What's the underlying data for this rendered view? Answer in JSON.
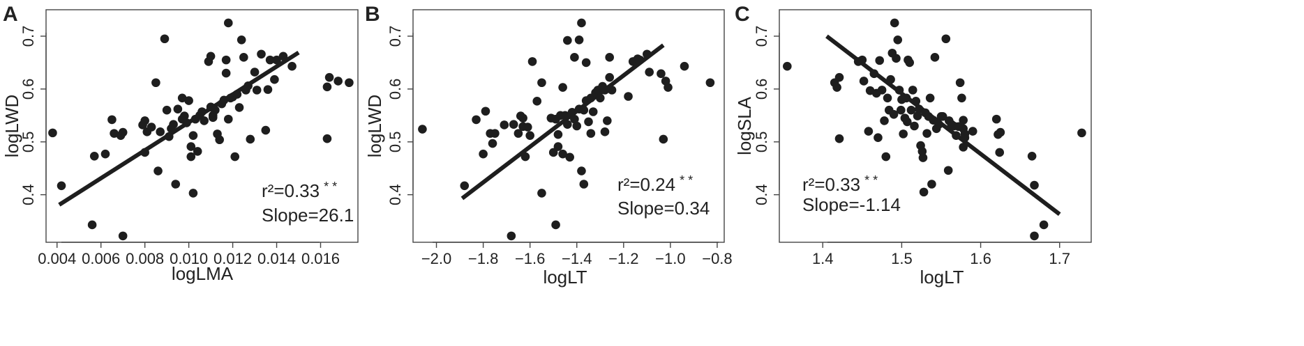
{
  "colors": {
    "point": "#1e1e1e",
    "fit_line": "#1e1e1e",
    "frame": "#444444",
    "text": "#222222"
  },
  "chart_data": [
    {
      "type": "scatter",
      "panel": "A",
      "xlabel": "logLMA",
      "ylabel": "logLWD",
      "xlim": [
        0.0035,
        0.0177
      ],
      "ylim": [
        0.31,
        0.75
      ],
      "x_ticks": [
        0.004,
        0.006,
        0.008,
        0.01,
        0.012,
        0.014,
        0.016
      ],
      "x_tick_labels": [
        "0.004",
        "0.006",
        "0.008",
        "0.010",
        "0.012",
        "0.014",
        "0.016"
      ],
      "y_ticks": [
        0.4,
        0.5,
        0.6,
        0.7
      ],
      "y_tick_labels": [
        "0.4",
        "0.5",
        "0.6",
        "0.7"
      ],
      "r2_text": "r²=0.33",
      "sig_text": "* *",
      "slope_text": "Slope=26.1",
      "fit_line": {
        "x": [
          0.0041,
          0.015
        ],
        "y": [
          0.381,
          0.669
        ]
      },
      "points": [
        [
          0.0038,
          0.517
        ],
        [
          0.0042,
          0.417
        ],
        [
          0.0056,
          0.343
        ],
        [
          0.0057,
          0.473
        ],
        [
          0.0062,
          0.477
        ],
        [
          0.0065,
          0.542
        ],
        [
          0.0066,
          0.516
        ],
        [
          0.0069,
          0.512
        ],
        [
          0.007,
          0.322
        ],
        [
          0.007,
          0.518
        ],
        [
          0.0079,
          0.532
        ],
        [
          0.008,
          0.48
        ],
        [
          0.008,
          0.54
        ],
        [
          0.0081,
          0.519
        ],
        [
          0.0083,
          0.528
        ],
        [
          0.0085,
          0.612
        ],
        [
          0.0086,
          0.445
        ],
        [
          0.0087,
          0.519
        ],
        [
          0.0089,
          0.695
        ],
        [
          0.009,
          0.56
        ],
        [
          0.0091,
          0.51
        ],
        [
          0.0092,
          0.525
        ],
        [
          0.0093,
          0.533
        ],
        [
          0.0094,
          0.42
        ],
        [
          0.0095,
          0.562
        ],
        [
          0.0097,
          0.543
        ],
        [
          0.0097,
          0.583
        ],
        [
          0.0098,
          0.549
        ],
        [
          0.0099,
          0.536
        ],
        [
          0.01,
          0.578
        ],
        [
          0.0101,
          0.472
        ],
        [
          0.0101,
          0.491
        ],
        [
          0.0102,
          0.512
        ],
        [
          0.0102,
          0.403
        ],
        [
          0.0103,
          0.543
        ],
        [
          0.0104,
          0.482
        ],
        [
          0.0105,
          0.55
        ],
        [
          0.0106,
          0.557
        ],
        [
          0.0107,
          0.54
        ],
        [
          0.0109,
          0.652
        ],
        [
          0.011,
          0.662
        ],
        [
          0.011,
          0.566
        ],
        [
          0.0111,
          0.55
        ],
        [
          0.0111,
          0.546
        ],
        [
          0.0112,
          0.56
        ],
        [
          0.0113,
          0.515
        ],
        [
          0.0114,
          0.504
        ],
        [
          0.0115,
          0.572
        ],
        [
          0.0116,
          0.579
        ],
        [
          0.0117,
          0.63
        ],
        [
          0.0117,
          0.655
        ],
        [
          0.0118,
          0.725
        ],
        [
          0.0118,
          0.543
        ],
        [
          0.0119,
          0.583
        ],
        [
          0.012,
          0.585
        ],
        [
          0.0121,
          0.472
        ],
        [
          0.0122,
          0.59
        ],
        [
          0.0123,
          0.565
        ],
        [
          0.0124,
          0.693
        ],
        [
          0.0125,
          0.66
        ],
        [
          0.0126,
          0.598
        ],
        [
          0.0127,
          0.606
        ],
        [
          0.0128,
          0.505
        ],
        [
          0.013,
          0.632
        ],
        [
          0.0131,
          0.598
        ],
        [
          0.0133,
          0.666
        ],
        [
          0.0135,
          0.522
        ],
        [
          0.0136,
          0.599
        ],
        [
          0.0137,
          0.655
        ],
        [
          0.0139,
          0.618
        ],
        [
          0.014,
          0.655
        ],
        [
          0.0143,
          0.662
        ],
        [
          0.0147,
          0.643
        ],
        [
          0.0163,
          0.506
        ],
        [
          0.0163,
          0.604
        ],
        [
          0.0164,
          0.622
        ],
        [
          0.0168,
          0.615
        ],
        [
          0.0173,
          0.612
        ]
      ]
    },
    {
      "type": "scatter",
      "panel": "B",
      "xlabel": "logLT",
      "ylabel": "logLWD",
      "xlim": [
        -2.1,
        -0.77
      ],
      "ylim": [
        0.31,
        0.75
      ],
      "x_ticks": [
        -2.0,
        -1.8,
        -1.6,
        -1.4,
        -1.2,
        -1.0,
        -0.8
      ],
      "x_tick_labels": [
        "−2.0",
        "−1.8",
        "−1.6",
        "−1.4",
        "−1.2",
        "−1.0",
        "−0.8"
      ],
      "y_ticks": [
        0.4,
        0.5,
        0.6,
        0.7
      ],
      "y_tick_labels": [
        "0.4",
        "0.5",
        "0.6",
        "0.7"
      ],
      "r2_text": "r²=0.24",
      "sig_text": "* *",
      "slope_text": "Slope=0.34",
      "fit_line": {
        "x": [
          -1.89,
          -1.03
        ],
        "y": [
          0.393,
          0.683
        ]
      },
      "points": [
        [
          -2.06,
          0.524
        ],
        [
          -1.88,
          0.417
        ],
        [
          -1.83,
          0.542
        ],
        [
          -1.8,
          0.477
        ],
        [
          -1.79,
          0.558
        ],
        [
          -1.77,
          0.516
        ],
        [
          -1.76,
          0.497
        ],
        [
          -1.75,
          0.516
        ],
        [
          -1.71,
          0.532
        ],
        [
          -1.68,
          0.322
        ],
        [
          -1.67,
          0.533
        ],
        [
          -1.65,
          0.516
        ],
        [
          -1.64,
          0.549
        ],
        [
          -1.63,
          0.545
        ],
        [
          -1.63,
          0.529
        ],
        [
          -1.62,
          0.472
        ],
        [
          -1.61,
          0.528
        ],
        [
          -1.6,
          0.512
        ],
        [
          -1.59,
          0.652
        ],
        [
          -1.57,
          0.577
        ],
        [
          -1.55,
          0.612
        ],
        [
          -1.55,
          0.403
        ],
        [
          -1.51,
          0.545
        ],
        [
          -1.5,
          0.48
        ],
        [
          -1.49,
          0.343
        ],
        [
          -1.49,
          0.543
        ],
        [
          -1.48,
          0.491
        ],
        [
          -1.48,
          0.514
        ],
        [
          -1.47,
          0.55
        ],
        [
          -1.46,
          0.603
        ],
        [
          -1.46,
          0.477
        ],
        [
          -1.45,
          0.55
        ],
        [
          -1.44,
          0.692
        ],
        [
          -1.44,
          0.533
        ],
        [
          -1.43,
          0.471
        ],
        [
          -1.42,
          0.556
        ],
        [
          -1.41,
          0.66
        ],
        [
          -1.41,
          0.543
        ],
        [
          -1.4,
          0.53
        ],
        [
          -1.39,
          0.693
        ],
        [
          -1.39,
          0.562
        ],
        [
          -1.38,
          0.445
        ],
        [
          -1.38,
          0.725
        ],
        [
          -1.37,
          0.42
        ],
        [
          -1.37,
          0.56
        ],
        [
          -1.36,
          0.578
        ],
        [
          -1.36,
          0.65
        ],
        [
          -1.35,
          0.538
        ],
        [
          -1.34,
          0.583
        ],
        [
          -1.34,
          0.516
        ],
        [
          -1.33,
          0.557
        ],
        [
          -1.32,
          0.593
        ],
        [
          -1.31,
          0.598
        ],
        [
          -1.3,
          0.583
        ],
        [
          -1.29,
          0.605
        ],
        [
          -1.28,
          0.519
        ],
        [
          -1.28,
          0.598
        ],
        [
          -1.27,
          0.54
        ],
        [
          -1.26,
          0.622
        ],
        [
          -1.26,
          0.66
        ],
        [
          -1.25,
          0.598
        ],
        [
          -1.18,
          0.586
        ],
        [
          -1.16,
          0.652
        ],
        [
          -1.14,
          0.657
        ],
        [
          -1.13,
          0.655
        ],
        [
          -1.1,
          0.666
        ],
        [
          -1.09,
          0.632
        ],
        [
          -1.04,
          0.629
        ],
        [
          -1.03,
          0.505
        ],
        [
          -1.02,
          0.615
        ],
        [
          -1.01,
          0.603
        ],
        [
          -0.94,
          0.643
        ],
        [
          -0.83,
          0.612
        ]
      ]
    },
    {
      "type": "scatter",
      "panel": "C",
      "xlabel": "logLT",
      "ylabel": "logSLA",
      "xlim": [
        1.345,
        1.74
      ],
      "ylim": [
        0.31,
        0.75
      ],
      "x_ticks": [
        1.4,
        1.5,
        1.6,
        1.7
      ],
      "x_tick_labels": [
        "1.4",
        "1.5",
        "1.6",
        "1.7"
      ],
      "y_ticks": [
        0.4,
        0.5,
        0.6,
        0.7
      ],
      "y_tick_labels": [
        "0.4",
        "0.5",
        "0.6",
        "0.7"
      ],
      "r2_text": "r²=0.33",
      "sig_text": "* *",
      "slope_text": "Slope=-1.14",
      "fit_line": {
        "x": [
          1.405,
          1.7
        ],
        "y": [
          0.7,
          0.363
        ]
      },
      "points": [
        [
          1.355,
          0.643
        ],
        [
          1.415,
          0.612
        ],
        [
          1.418,
          0.603
        ],
        [
          1.421,
          0.622
        ],
        [
          1.421,
          0.506
        ],
        [
          1.445,
          0.652
        ],
        [
          1.45,
          0.655
        ],
        [
          1.452,
          0.615
        ],
        [
          1.458,
          0.52
        ],
        [
          1.46,
          0.597
        ],
        [
          1.465,
          0.629
        ],
        [
          1.468,
          0.592
        ],
        [
          1.47,
          0.508
        ],
        [
          1.472,
          0.654
        ],
        [
          1.475,
          0.598
        ],
        [
          1.478,
          0.54
        ],
        [
          1.48,
          0.472
        ],
        [
          1.482,
          0.583
        ],
        [
          1.484,
          0.56
        ],
        [
          1.486,
          0.618
        ],
        [
          1.488,
          0.668
        ],
        [
          1.49,
          0.552
        ],
        [
          1.491,
          0.725
        ],
        [
          1.493,
          0.658
        ],
        [
          1.495,
          0.693
        ],
        [
          1.497,
          0.598
        ],
        [
          1.499,
          0.56
        ],
        [
          1.5,
          0.58
        ],
        [
          1.502,
          0.515
        ],
        [
          1.504,
          0.545
        ],
        [
          1.506,
          0.583
        ],
        [
          1.507,
          0.538
        ],
        [
          1.508,
          0.655
        ],
        [
          1.51,
          0.65
        ],
        [
          1.512,
          0.56
        ],
        [
          1.514,
          0.598
        ],
        [
          1.516,
          0.53
        ],
        [
          1.518,
          0.577
        ],
        [
          1.52,
          0.549
        ],
        [
          1.522,
          0.562
        ],
        [
          1.524,
          0.493
        ],
        [
          1.526,
          0.482
        ],
        [
          1.527,
          0.47
        ],
        [
          1.528,
          0.405
        ],
        [
          1.53,
          0.555
        ],
        [
          1.532,
          0.516
        ],
        [
          1.534,
          0.548
        ],
        [
          1.536,
          0.583
        ],
        [
          1.538,
          0.42
        ],
        [
          1.54,
          0.541
        ],
        [
          1.542,
          0.66
        ],
        [
          1.544,
          0.525
        ],
        [
          1.547,
          0.533
        ],
        [
          1.55,
          0.548
        ],
        [
          1.552,
          0.548
        ],
        [
          1.556,
          0.695
        ],
        [
          1.559,
          0.446
        ],
        [
          1.56,
          0.54
        ],
        [
          1.563,
          0.533
        ],
        [
          1.566,
          0.53
        ],
        [
          1.569,
          0.512
        ],
        [
          1.572,
          0.529
        ],
        [
          1.574,
          0.612
        ],
        [
          1.576,
          0.583
        ],
        [
          1.578,
          0.525
        ],
        [
          1.578,
          0.49
        ],
        [
          1.578,
          0.541
        ],
        [
          1.58,
          0.508
        ],
        [
          1.58,
          0.515
        ],
        [
          1.59,
          0.52
        ],
        [
          1.62,
          0.543
        ],
        [
          1.622,
          0.514
        ],
        [
          1.624,
          0.48
        ],
        [
          1.625,
          0.518
        ],
        [
          1.665,
          0.473
        ],
        [
          1.668,
          0.322
        ],
        [
          1.668,
          0.418
        ],
        [
          1.68,
          0.343
        ],
        [
          1.728,
          0.517
        ]
      ]
    }
  ]
}
